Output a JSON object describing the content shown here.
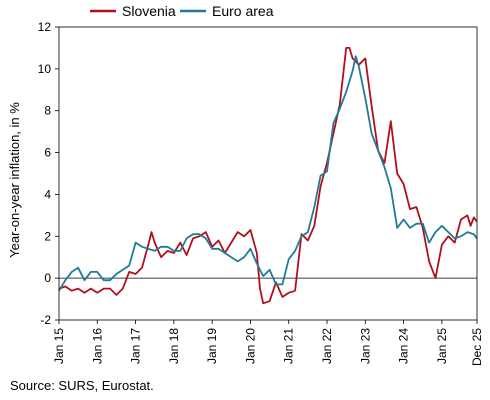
{
  "chart_data": {
    "type": "line",
    "ylabel": "Year-on-year inflation, in %",
    "ylim": [
      -2,
      12
    ],
    "yticks": [
      "-2",
      "0",
      "2",
      "4",
      "6",
      "8",
      "10",
      "12"
    ],
    "xlim": [
      "2015-01",
      "2025-12"
    ],
    "xticks": [
      {
        "date": "2015-01",
        "label": "Jan 15"
      },
      {
        "date": "2016-01",
        "label": "Jan 16"
      },
      {
        "date": "2017-01",
        "label": "Jan 17"
      },
      {
        "date": "2018-01",
        "label": "Jan 18"
      },
      {
        "date": "2019-01",
        "label": "Jan 19"
      },
      {
        "date": "2020-01",
        "label": "Jan 20"
      },
      {
        "date": "2021-01",
        "label": "Jan 21"
      },
      {
        "date": "2022-01",
        "label": "Jan 22"
      },
      {
        "date": "2023-01",
        "label": "Jan 23"
      },
      {
        "date": "2024-01",
        "label": "Jan 24"
      },
      {
        "date": "2025-01",
        "label": "Jan 25"
      },
      {
        "date": "2025-12",
        "label": "Dec 25"
      }
    ],
    "legend_position": "top",
    "grid": false,
    "zero_line": true,
    "series": [
      {
        "name": "Slovenia",
        "color": "#b0101e",
        "points": [
          [
            "2015-01",
            -0.5
          ],
          [
            "2015-03",
            -0.4
          ],
          [
            "2015-05",
            -0.6
          ],
          [
            "2015-07",
            -0.5
          ],
          [
            "2015-09",
            -0.7
          ],
          [
            "2015-11",
            -0.5
          ],
          [
            "2016-01",
            -0.7
          ],
          [
            "2016-03",
            -0.5
          ],
          [
            "2016-05",
            -0.5
          ],
          [
            "2016-07",
            -0.8
          ],
          [
            "2016-09",
            -0.5
          ],
          [
            "2016-11",
            0.3
          ],
          [
            "2017-01",
            0.2
          ],
          [
            "2017-03",
            0.5
          ],
          [
            "2017-05",
            1.6
          ],
          [
            "2017-06",
            2.2
          ],
          [
            "2017-07",
            1.7
          ],
          [
            "2017-09",
            1.0
          ],
          [
            "2017-11",
            1.3
          ],
          [
            "2018-01",
            1.2
          ],
          [
            "2018-03",
            1.7
          ],
          [
            "2018-05",
            1.1
          ],
          [
            "2018-07",
            1.9
          ],
          [
            "2018-09",
            2.0
          ],
          [
            "2018-11",
            2.2
          ],
          [
            "2019-01",
            1.5
          ],
          [
            "2019-03",
            1.8
          ],
          [
            "2019-05",
            1.2
          ],
          [
            "2019-07",
            1.7
          ],
          [
            "2019-09",
            2.2
          ],
          [
            "2019-11",
            2.0
          ],
          [
            "2020-01",
            2.3
          ],
          [
            "2020-03",
            1.2
          ],
          [
            "2020-04",
            -0.5
          ],
          [
            "2020-05",
            -1.2
          ],
          [
            "2020-07",
            -1.1
          ],
          [
            "2020-09",
            -0.2
          ],
          [
            "2020-11",
            -0.9
          ],
          [
            "2021-01",
            -0.7
          ],
          [
            "2021-03",
            -0.6
          ],
          [
            "2021-05",
            2.1
          ],
          [
            "2021-07",
            1.8
          ],
          [
            "2021-09",
            2.5
          ],
          [
            "2021-11",
            4.4
          ],
          [
            "2022-01",
            5.5
          ],
          [
            "2022-03",
            6.9
          ],
          [
            "2022-05",
            8.3
          ],
          [
            "2022-07",
            11.0
          ],
          [
            "2022-08",
            11.0
          ],
          [
            "2022-09",
            10.5
          ],
          [
            "2022-11",
            10.2
          ],
          [
            "2023-01",
            10.5
          ],
          [
            "2023-03",
            8.2
          ],
          [
            "2023-05",
            6.1
          ],
          [
            "2023-07",
            5.5
          ],
          [
            "2023-09",
            7.5
          ],
          [
            "2023-11",
            5.0
          ],
          [
            "2024-01",
            4.5
          ],
          [
            "2024-03",
            3.3
          ],
          [
            "2024-05",
            3.4
          ],
          [
            "2024-07",
            2.4
          ],
          [
            "2024-09",
            0.8
          ],
          [
            "2024-11",
            0.0
          ],
          [
            "2025-01",
            1.6
          ],
          [
            "2025-03",
            2.0
          ],
          [
            "2025-05",
            1.7
          ],
          [
            "2025-07",
            2.8
          ],
          [
            "2025-09",
            3.0
          ],
          [
            "2025-10",
            2.5
          ],
          [
            "2025-11",
            2.9
          ],
          [
            "2025-12",
            2.7
          ]
        ]
      },
      {
        "name": "Euro area",
        "color": "#217b95",
        "points": [
          [
            "2015-01",
            -0.6
          ],
          [
            "2015-03",
            -0.1
          ],
          [
            "2015-05",
            0.3
          ],
          [
            "2015-07",
            0.5
          ],
          [
            "2015-09",
            -0.1
          ],
          [
            "2015-11",
            0.3
          ],
          [
            "2016-01",
            0.3
          ],
          [
            "2016-03",
            -0.1
          ],
          [
            "2016-05",
            -0.1
          ],
          [
            "2016-07",
            0.2
          ],
          [
            "2016-09",
            0.4
          ],
          [
            "2016-11",
            0.6
          ],
          [
            "2017-01",
            1.7
          ],
          [
            "2017-03",
            1.5
          ],
          [
            "2017-05",
            1.4
          ],
          [
            "2017-07",
            1.3
          ],
          [
            "2017-09",
            1.5
          ],
          [
            "2017-11",
            1.5
          ],
          [
            "2018-01",
            1.3
          ],
          [
            "2018-03",
            1.3
          ],
          [
            "2018-05",
            1.9
          ],
          [
            "2018-07",
            2.1
          ],
          [
            "2018-09",
            2.1
          ],
          [
            "2018-11",
            1.9
          ],
          [
            "2019-01",
            1.4
          ],
          [
            "2019-03",
            1.4
          ],
          [
            "2019-05",
            1.2
          ],
          [
            "2019-07",
            1.0
          ],
          [
            "2019-09",
            0.8
          ],
          [
            "2019-11",
            1.0
          ],
          [
            "2020-01",
            1.4
          ],
          [
            "2020-03",
            0.7
          ],
          [
            "2020-05",
            0.1
          ],
          [
            "2020-07",
            0.4
          ],
          [
            "2020-09",
            -0.3
          ],
          [
            "2020-11",
            -0.3
          ],
          [
            "2021-01",
            0.9
          ],
          [
            "2021-03",
            1.3
          ],
          [
            "2021-05",
            2.0
          ],
          [
            "2021-07",
            2.2
          ],
          [
            "2021-09",
            3.4
          ],
          [
            "2021-11",
            4.9
          ],
          [
            "2022-01",
            5.1
          ],
          [
            "2022-03",
            7.4
          ],
          [
            "2022-05",
            8.1
          ],
          [
            "2022-07",
            8.9
          ],
          [
            "2022-09",
            9.9
          ],
          [
            "2022-10",
            10.6
          ],
          [
            "2022-11",
            10.1
          ],
          [
            "2023-01",
            8.6
          ],
          [
            "2023-03",
            6.9
          ],
          [
            "2023-05",
            6.1
          ],
          [
            "2023-07",
            5.3
          ],
          [
            "2023-09",
            4.3
          ],
          [
            "2023-11",
            2.4
          ],
          [
            "2024-01",
            2.8
          ],
          [
            "2024-03",
            2.4
          ],
          [
            "2024-05",
            2.6
          ],
          [
            "2024-07",
            2.6
          ],
          [
            "2024-09",
            1.7
          ],
          [
            "2024-11",
            2.2
          ],
          [
            "2025-01",
            2.5
          ],
          [
            "2025-03",
            2.2
          ],
          [
            "2025-05",
            1.9
          ],
          [
            "2025-07",
            2.0
          ],
          [
            "2025-09",
            2.2
          ],
          [
            "2025-11",
            2.1
          ],
          [
            "2025-12",
            1.9
          ]
        ]
      }
    ]
  },
  "source": "Source: SURS, Eurostat."
}
